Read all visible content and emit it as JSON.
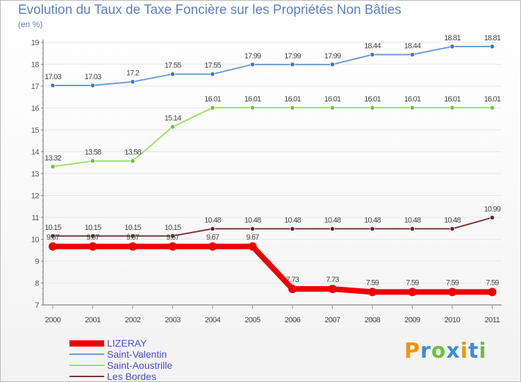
{
  "chart_data": {
    "type": "line",
    "title": "Evolution du Taux de Taxe Foncière sur les Propriétés Non Bâties",
    "ylabel": "(en %)",
    "xlabel": "",
    "ylim": [
      7,
      19
    ],
    "yticks": [
      "7",
      "8",
      "9",
      "10",
      "11",
      "12",
      "13",
      "14",
      "15",
      "16",
      "17",
      "18",
      "19"
    ],
    "x": [
      "2000",
      "2001",
      "2002",
      "2003",
      "2004",
      "2005",
      "2006",
      "2007",
      "2008",
      "2009",
      "2010",
      "2011"
    ],
    "series": [
      {
        "name": "Saint-Valentin",
        "color": "#6b9bd2",
        "marker": "#3a78c2",
        "values": [
          17.03,
          17.03,
          17.2,
          17.55,
          17.55,
          17.99,
          17.99,
          17.99,
          18.44,
          18.44,
          18.81,
          18.81
        ],
        "labels": [
          "17.03",
          "17.03",
          "17.2",
          "17.55",
          "17.55",
          "17.99",
          "17.99",
          "17.99",
          "18.44",
          "18.44",
          "18.81",
          "18.81"
        ]
      },
      {
        "name": "Saint-Aoustrille",
        "color": "#9ee06a",
        "marker": "#6cc23a",
        "values": [
          13.32,
          13.58,
          13.58,
          15.14,
          16.01,
          16.01,
          16.01,
          16.01,
          16.01,
          16.01,
          16.01,
          16.01
        ],
        "labels": [
          "13.32",
          "13.58",
          "13.58",
          "15.14",
          "16.01",
          "16.01",
          "16.01",
          "16.01",
          "16.01",
          "16.01",
          "16.01",
          "16.01"
        ]
      },
      {
        "name": "Les Bordes",
        "color": "#7a3535",
        "marker": "#6a1f1f",
        "values": [
          10.15,
          10.15,
          10.15,
          10.15,
          10.48,
          10.48,
          10.48,
          10.48,
          10.48,
          10.48,
          10.48,
          10.99
        ],
        "labels": [
          "10.15",
          "10.15",
          "10.15",
          "10.15",
          "10.48",
          "10.48",
          "10.48",
          "10.48",
          "10.48",
          "10.48",
          "10.48",
          "10.99"
        ]
      },
      {
        "name": "LIZERAY",
        "color": "#ee0000",
        "marker": "#ee0000",
        "values": [
          9.67,
          9.67,
          9.67,
          9.67,
          9.67,
          9.67,
          7.73,
          7.73,
          7.59,
          7.59,
          7.59,
          7.59
        ],
        "labels": [
          "9.67",
          "9.67",
          "9.67",
          "9.67",
          "9.67",
          "9.67",
          "7.73",
          "7.73",
          "7.59",
          "7.59",
          "7.59",
          "7.59"
        ]
      }
    ],
    "legend_order": [
      "LIZERAY",
      "Saint-Valentin",
      "Saint-Aoustrille",
      "Les Bordes"
    ],
    "legend_position": "bottom-left"
  },
  "logo": {
    "letters": [
      "P",
      "r",
      "o",
      "x",
      "i",
      "t",
      "i"
    ],
    "colors": [
      "#f29400",
      "#3a8fd6",
      "#6cc23a",
      "#3a8fd6",
      "#f29400",
      "#3a8fd6",
      "#6cc23a"
    ]
  }
}
